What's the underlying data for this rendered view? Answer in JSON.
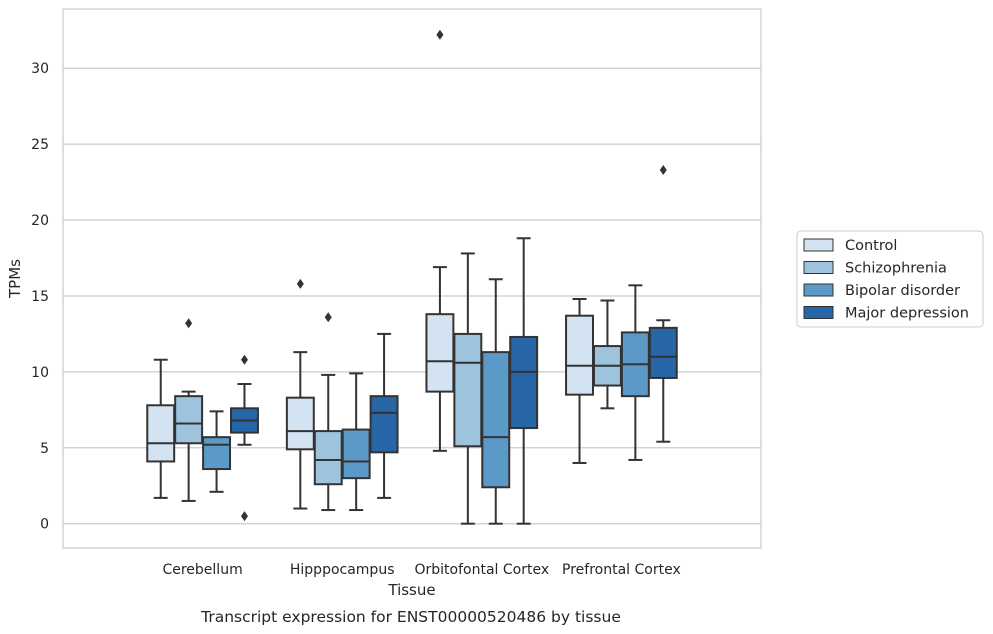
{
  "chart_data": {
    "type": "box",
    "caption": "Transcript expression for ENST00000520486 by tissue",
    "xlabel": "Tissue",
    "ylabel": "TPMs",
    "ylim": [
      -1.6,
      33.9
    ],
    "yticks": [
      0,
      5,
      10,
      15,
      20,
      25,
      30
    ],
    "grid": "horizontal",
    "legend_position": "outside-right",
    "categories": [
      "Cerebellum",
      "Hipppocampus",
      "Orbitofontal Cortex",
      "Prefrontal Cortex"
    ],
    "series": [
      {
        "name": "Control",
        "color": "#d3e3f2",
        "boxes": [
          {
            "whislo": 1.7,
            "q1": 4.1,
            "median": 5.3,
            "q3": 7.8,
            "whishi": 10.8,
            "fliers": []
          },
          {
            "whislo": 1.0,
            "q1": 4.9,
            "median": 6.1,
            "q3": 8.3,
            "whishi": 11.3,
            "fliers": [
              15.8
            ]
          },
          {
            "whislo": 4.8,
            "q1": 8.7,
            "median": 10.7,
            "q3": 13.8,
            "whishi": 16.9,
            "fliers": [
              32.2
            ]
          },
          {
            "whislo": 4.0,
            "q1": 8.5,
            "median": 10.4,
            "q3": 13.7,
            "whishi": 14.8,
            "fliers": []
          }
        ]
      },
      {
        "name": "Schizophrenia",
        "color": "#9dc3dd",
        "boxes": [
          {
            "whislo": 1.5,
            "q1": 5.3,
            "median": 6.6,
            "q3": 8.4,
            "whishi": 8.7,
            "fliers": [
              13.2
            ]
          },
          {
            "whislo": 0.9,
            "q1": 2.6,
            "median": 4.2,
            "q3": 6.1,
            "whishi": 9.8,
            "fliers": [
              13.6
            ]
          },
          {
            "whislo": 0.0,
            "q1": 5.1,
            "median": 10.6,
            "q3": 12.5,
            "whishi": 17.8,
            "fliers": []
          },
          {
            "whislo": 7.6,
            "q1": 9.1,
            "median": 10.4,
            "q3": 11.7,
            "whishi": 14.7,
            "fliers": []
          }
        ]
      },
      {
        "name": "Bipolar disorder",
        "color": "#5b9ac6",
        "boxes": [
          {
            "whislo": 2.1,
            "q1": 3.6,
            "median": 5.2,
            "q3": 5.7,
            "whishi": 7.4,
            "fliers": []
          },
          {
            "whislo": 0.9,
            "q1": 3.0,
            "median": 4.1,
            "q3": 6.2,
            "whishi": 9.9,
            "fliers": []
          },
          {
            "whislo": 0.0,
            "q1": 2.4,
            "median": 5.7,
            "q3": 11.3,
            "whishi": 16.1,
            "fliers": []
          },
          {
            "whislo": 4.2,
            "q1": 8.4,
            "median": 10.5,
            "q3": 12.6,
            "whishi": 15.7,
            "fliers": []
          }
        ]
      },
      {
        "name": "Major depression",
        "color": "#2767a8",
        "boxes": [
          {
            "whislo": 5.2,
            "q1": 6.0,
            "median": 6.8,
            "q3": 7.6,
            "whishi": 9.2,
            "fliers": [
              10.8,
              0.5
            ]
          },
          {
            "whislo": 1.7,
            "q1": 4.7,
            "median": 7.3,
            "q3": 8.4,
            "whishi": 12.5,
            "fliers": []
          },
          {
            "whislo": 0.0,
            "q1": 6.3,
            "median": 10.0,
            "q3": 12.3,
            "whishi": 18.8,
            "fliers": []
          },
          {
            "whislo": 5.4,
            "q1": 9.6,
            "median": 11.0,
            "q3": 12.9,
            "whishi": 13.4,
            "fliers": [
              23.3
            ]
          }
        ]
      }
    ]
  }
}
